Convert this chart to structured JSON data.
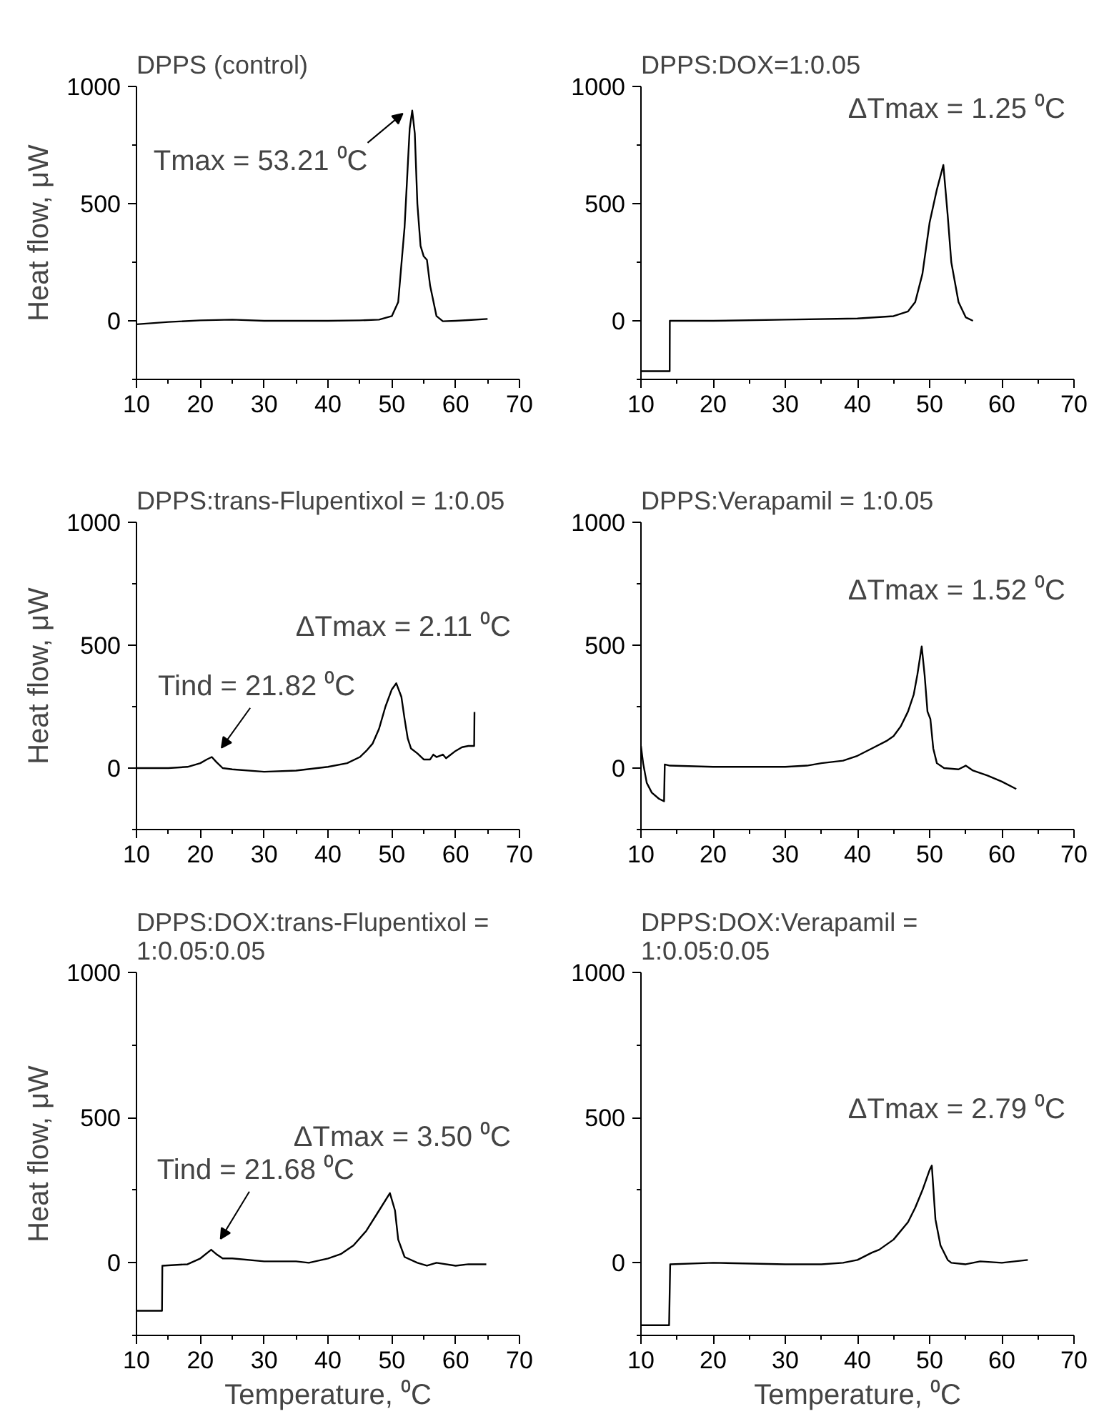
{
  "chart_data": [
    {
      "type": "line",
      "title": "DPPS (control)",
      "ylabel": "Heat flow, μW",
      "xlim": [
        10,
        70
      ],
      "ylim": [
        -250,
        1000
      ],
      "xticks": [
        10,
        20,
        30,
        40,
        50,
        60,
        70
      ],
      "yticks": [
        0,
        500,
        1000
      ],
      "series": [
        {
          "color": "#000000",
          "x": [
            10,
            15,
            20,
            25,
            30,
            35,
            40,
            45,
            48,
            50,
            51,
            52,
            52.8,
            53.2,
            53.6,
            54,
            54.5,
            55,
            55.5,
            56,
            57,
            58,
            60,
            62,
            65
          ],
          "values": [
            -15,
            -5,
            2,
            5,
            0,
            0,
            0,
            2,
            5,
            20,
            80,
            400,
            820,
            897,
            800,
            500,
            320,
            275,
            260,
            150,
            20,
            -2,
            0,
            3,
            8
          ]
        }
      ],
      "annotations": [
        {
          "text": "Tmax = 53.21 ⁰C",
          "x": 53.21,
          "y": 897
        }
      ]
    },
    {
      "type": "line",
      "title": "DPPS:DOX=1:0.05",
      "xlim": [
        10,
        70
      ],
      "ylim": [
        -250,
        1000
      ],
      "xticks": [
        10,
        20,
        30,
        40,
        50,
        60,
        70
      ],
      "yticks": [
        0,
        500,
        1000
      ],
      "series": [
        {
          "color": "#000000",
          "x": [
            10,
            13.98,
            14,
            20,
            30,
            40,
            45,
            47,
            48,
            49,
            50,
            51,
            51.9,
            52.5,
            53,
            54,
            55,
            56
          ],
          "values": [
            -215,
            -215,
            0,
            0,
            5,
            10,
            20,
            40,
            80,
            200,
            420,
            560,
            665,
            450,
            250,
            80,
            15,
            0
          ]
        }
      ],
      "annotations": [
        "ΔTmax = 1.25 ⁰C"
      ]
    },
    {
      "type": "line",
      "title": "DPPS:trans-Flupentixol = 1:0.05",
      "ylabel": "Heat flow, μW",
      "xlim": [
        10,
        70
      ],
      "ylim": [
        -250,
        1000
      ],
      "xticks": [
        10,
        20,
        30,
        40,
        50,
        60,
        70
      ],
      "yticks": [
        0,
        500,
        1000
      ],
      "series": [
        {
          "color": "#000000",
          "x": [
            10,
            15,
            18,
            20,
            21,
            21.8,
            22.5,
            23.5,
            25,
            30,
            35,
            40,
            43,
            45,
            46,
            47,
            48,
            49,
            50,
            50.7,
            51.5,
            52,
            52.5,
            53,
            54,
            55,
            56,
            56.5,
            57,
            58,
            58.5,
            59,
            60,
            61,
            62,
            62.9,
            62.95
          ],
          "values": [
            0,
            0,
            5,
            20,
            35,
            45,
            25,
            0,
            -5,
            -15,
            -10,
            5,
            20,
            45,
            70,
            100,
            160,
            250,
            320,
            345,
            290,
            200,
            120,
            80,
            60,
            35,
            35,
            55,
            45,
            55,
            40,
            50,
            70,
            85,
            90,
            90,
            228
          ]
        }
      ],
      "annotations": [
        "ΔTmax = 2.11 ⁰C",
        {
          "text": "Tind = 21.82 ⁰C",
          "x": 21.82,
          "y": 45
        }
      ]
    },
    {
      "type": "line",
      "title": "DPPS:Verapamil = 1:0.05",
      "xlim": [
        10,
        70
      ],
      "ylim": [
        -250,
        1000
      ],
      "xticks": [
        10,
        20,
        30,
        40,
        50,
        60,
        70
      ],
      "yticks": [
        0,
        500,
        1000
      ],
      "series": [
        {
          "color": "#000000",
          "x": [
            10,
            10.3,
            10.8,
            11.5,
            12.5,
            13.2,
            13.3,
            14,
            20,
            30,
            33,
            35,
            38,
            40,
            42,
            44,
            45,
            46,
            47,
            47.8,
            48.3,
            48.9,
            49.3,
            49.7,
            50.1,
            50.5,
            51,
            52,
            54,
            55,
            56,
            58,
            60,
            62
          ],
          "values": [
            90,
            20,
            -60,
            -100,
            -125,
            -135,
            15,
            10,
            5,
            5,
            10,
            20,
            30,
            50,
            80,
            110,
            130,
            170,
            230,
            300,
            380,
            495,
            380,
            230,
            200,
            80,
            20,
            0,
            -5,
            10,
            -10,
            -30,
            -55,
            -85
          ]
        }
      ],
      "annotations": [
        "ΔTmax = 1.52 ⁰C"
      ]
    },
    {
      "type": "line",
      "title": "DPPS:DOX:trans-Flupentixol = 1:0.05:0.05",
      "xlabel": "Temperature, ⁰C",
      "ylabel": "Heat flow, μW",
      "xlim": [
        10,
        70
      ],
      "ylim": [
        -250,
        1000
      ],
      "xticks": [
        10,
        20,
        30,
        40,
        50,
        60,
        70
      ],
      "yticks": [
        0,
        500,
        1000
      ],
      "series": [
        {
          "color": "#000000",
          "x": [
            10,
            14,
            14.05,
            18,
            20,
            21.7,
            22.5,
            23.5,
            25,
            30,
            35,
            37,
            40,
            42,
            44,
            46,
            48,
            49.7,
            50.5,
            51,
            52,
            54,
            55.5,
            57,
            60,
            62,
            64.8
          ],
          "values": [
            -165,
            -165,
            -10,
            -5,
            15,
            45,
            30,
            15,
            15,
            5,
            5,
            0,
            15,
            30,
            60,
            110,
            180,
            240,
            180,
            80,
            20,
            0,
            -10,
            0,
            -10,
            -5,
            -5
          ]
        }
      ],
      "annotations": [
        "ΔTmax = 3.50 ⁰C",
        {
          "text": "Tind = 21.68 ⁰C",
          "x": 21.68,
          "y": 45
        }
      ]
    },
    {
      "type": "line",
      "title": "DPPS:DOX:Verapamil = 1:0.05:0.05",
      "xlabel": "Temperature, ⁰C",
      "xlim": [
        10,
        70
      ],
      "ylim": [
        -250,
        1000
      ],
      "xticks": [
        10,
        20,
        30,
        40,
        50,
        60,
        70
      ],
      "yticks": [
        0,
        500,
        1000
      ],
      "series": [
        {
          "color": "#000000",
          "x": [
            10,
            13.9,
            14.05,
            20,
            30,
            35,
            38,
            40,
            42,
            43,
            45,
            47,
            48,
            49,
            50,
            50.3,
            50.8,
            51.5,
            52.5,
            53,
            55,
            57,
            60,
            63.6
          ],
          "values": [
            -215,
            -215,
            -5,
            0,
            -5,
            -5,
            0,
            10,
            35,
            45,
            80,
            140,
            190,
            250,
            320,
            335,
            150,
            60,
            10,
            0,
            -5,
            5,
            0,
            10
          ]
        }
      ],
      "annotations": [
        "ΔTmax = 2.79 ⁰C"
      ]
    }
  ]
}
